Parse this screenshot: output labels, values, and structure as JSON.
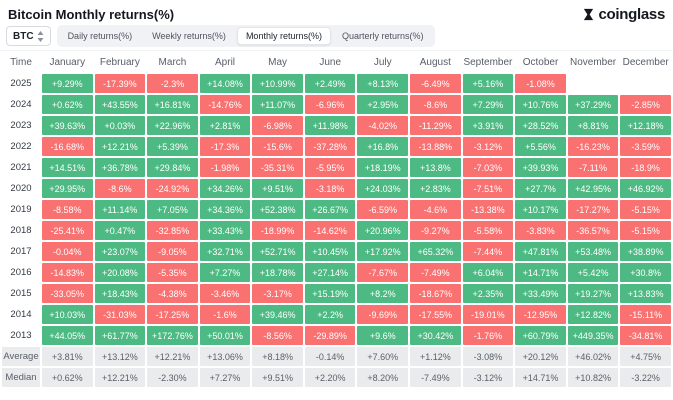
{
  "header": {
    "title": "Bitcoin Monthly returns(%)",
    "logo_text": "coinglass"
  },
  "controls": {
    "symbol_select": {
      "value": "BTC"
    },
    "tabs": [
      {
        "label": "Daily returns(%)",
        "active": false
      },
      {
        "label": "Weekly returns(%)",
        "active": false
      },
      {
        "label": "Monthly returns(%)",
        "active": true
      },
      {
        "label": "Quarterly returns(%)",
        "active": false
      }
    ]
  },
  "chart_data": {
    "type": "heatmap",
    "title": "Bitcoin Monthly returns(%)",
    "columns": [
      "Time",
      "January",
      "February",
      "March",
      "April",
      "May",
      "June",
      "July",
      "August",
      "September",
      "October",
      "November",
      "December"
    ],
    "rows": [
      {
        "label": "2025",
        "values": [
          "+9.29%",
          "-17.39%",
          "-2.3%",
          "+14.08%",
          "+10.99%",
          "+2.49%",
          "+8.13%",
          "-6.49%",
          "+5.16%",
          "-1.08%",
          "",
          ""
        ]
      },
      {
        "label": "2024",
        "values": [
          "+0.62%",
          "+43.55%",
          "+16.81%",
          "-14.76%",
          "+11.07%",
          "-6.96%",
          "+2.95%",
          "-8.6%",
          "+7.29%",
          "+10.76%",
          "+37.29%",
          "-2.85%"
        ]
      },
      {
        "label": "2023",
        "values": [
          "+39.63%",
          "+0.03%",
          "+22.96%",
          "+2.81%",
          "-6.98%",
          "+11.98%",
          "-4.02%",
          "-11.29%",
          "+3.91%",
          "+28.52%",
          "+8.81%",
          "+12.18%"
        ]
      },
      {
        "label": "2022",
        "values": [
          "-16.68%",
          "+12.21%",
          "+5.39%",
          "-17.3%",
          "-15.6%",
          "-37.28%",
          "+16.8%",
          "-13.88%",
          "-3.12%",
          "+5.56%",
          "-16.23%",
          "-3.59%"
        ]
      },
      {
        "label": "2021",
        "values": [
          "+14.51%",
          "+36.78%",
          "+29.84%",
          "-1.98%",
          "-35.31%",
          "-5.95%",
          "+18.19%",
          "+13.8%",
          "-7.03%",
          "+39.93%",
          "-7.11%",
          "-18.9%"
        ]
      },
      {
        "label": "2020",
        "values": [
          "+29.95%",
          "-8.6%",
          "-24.92%",
          "+34.26%",
          "+9.51%",
          "-3.18%",
          "+24.03%",
          "+2.83%",
          "-7.51%",
          "+27.7%",
          "+42.95%",
          "+46.92%"
        ]
      },
      {
        "label": "2019",
        "values": [
          "-8.58%",
          "+11.14%",
          "+7.05%",
          "+34.36%",
          "+52.38%",
          "+26.67%",
          "-6.59%",
          "-4.6%",
          "-13.38%",
          "+10.17%",
          "-17.27%",
          "-5.15%"
        ]
      },
      {
        "label": "2018",
        "values": [
          "-25.41%",
          "+0.47%",
          "-32.85%",
          "+33.43%",
          "-18.99%",
          "-14.62%",
          "+20.96%",
          "-9.27%",
          "-5.58%",
          "-3.83%",
          "-36.57%",
          "-5.15%"
        ]
      },
      {
        "label": "2017",
        "values": [
          "-0.04%",
          "+23.07%",
          "-9.05%",
          "+32.71%",
          "+52.71%",
          "+10.45%",
          "+17.92%",
          "+65.32%",
          "-7.44%",
          "+47.81%",
          "+53.48%",
          "+38.89%"
        ]
      },
      {
        "label": "2016",
        "values": [
          "-14.83%",
          "+20.08%",
          "-5.35%",
          "+7.27%",
          "+18.78%",
          "+27.14%",
          "-7.67%",
          "-7.49%",
          "+6.04%",
          "+14.71%",
          "+5.42%",
          "+30.8%"
        ]
      },
      {
        "label": "2015",
        "values": [
          "-33.05%",
          "+18.43%",
          "-4.38%",
          "-3.46%",
          "-3.17%",
          "+15.19%",
          "+8.2%",
          "-18.67%",
          "+2.35%",
          "+33.49%",
          "+19.27%",
          "+13.83%"
        ]
      },
      {
        "label": "2014",
        "values": [
          "+10.03%",
          "-31.03%",
          "-17.25%",
          "-1.6%",
          "+39.46%",
          "+2.2%",
          "-9.69%",
          "-17.55%",
          "-19.01%",
          "-12.95%",
          "+12.82%",
          "-15.11%"
        ]
      },
      {
        "label": "2013",
        "values": [
          "+44.05%",
          "+61.77%",
          "+172.76%",
          "+50.01%",
          "-8.56%",
          "-29.89%",
          "+9.6%",
          "+30.42%",
          "-1.76%",
          "+60.79%",
          "+449.35%",
          "-34.81%"
        ]
      },
      {
        "label": "Average",
        "summary": true,
        "values": [
          "+3.81%",
          "+13.12%",
          "+12.21%",
          "+13.06%",
          "+8.18%",
          "-0.14%",
          "+7.60%",
          "+1.12%",
          "-3.08%",
          "+20.12%",
          "+46.02%",
          "+4.75%"
        ]
      },
      {
        "label": "Median",
        "summary": true,
        "values": [
          "+0.62%",
          "+12.21%",
          "-2.30%",
          "+7.27%",
          "+9.51%",
          "+2.20%",
          "+8.20%",
          "-7.49%",
          "-3.12%",
          "+14.71%",
          "+10.82%",
          "-3.22%"
        ]
      }
    ],
    "colors": {
      "positive": "#4dba83",
      "negative": "#fa7171",
      "summary_bg": "#eaebed",
      "summary_text": "#5a6069"
    }
  }
}
